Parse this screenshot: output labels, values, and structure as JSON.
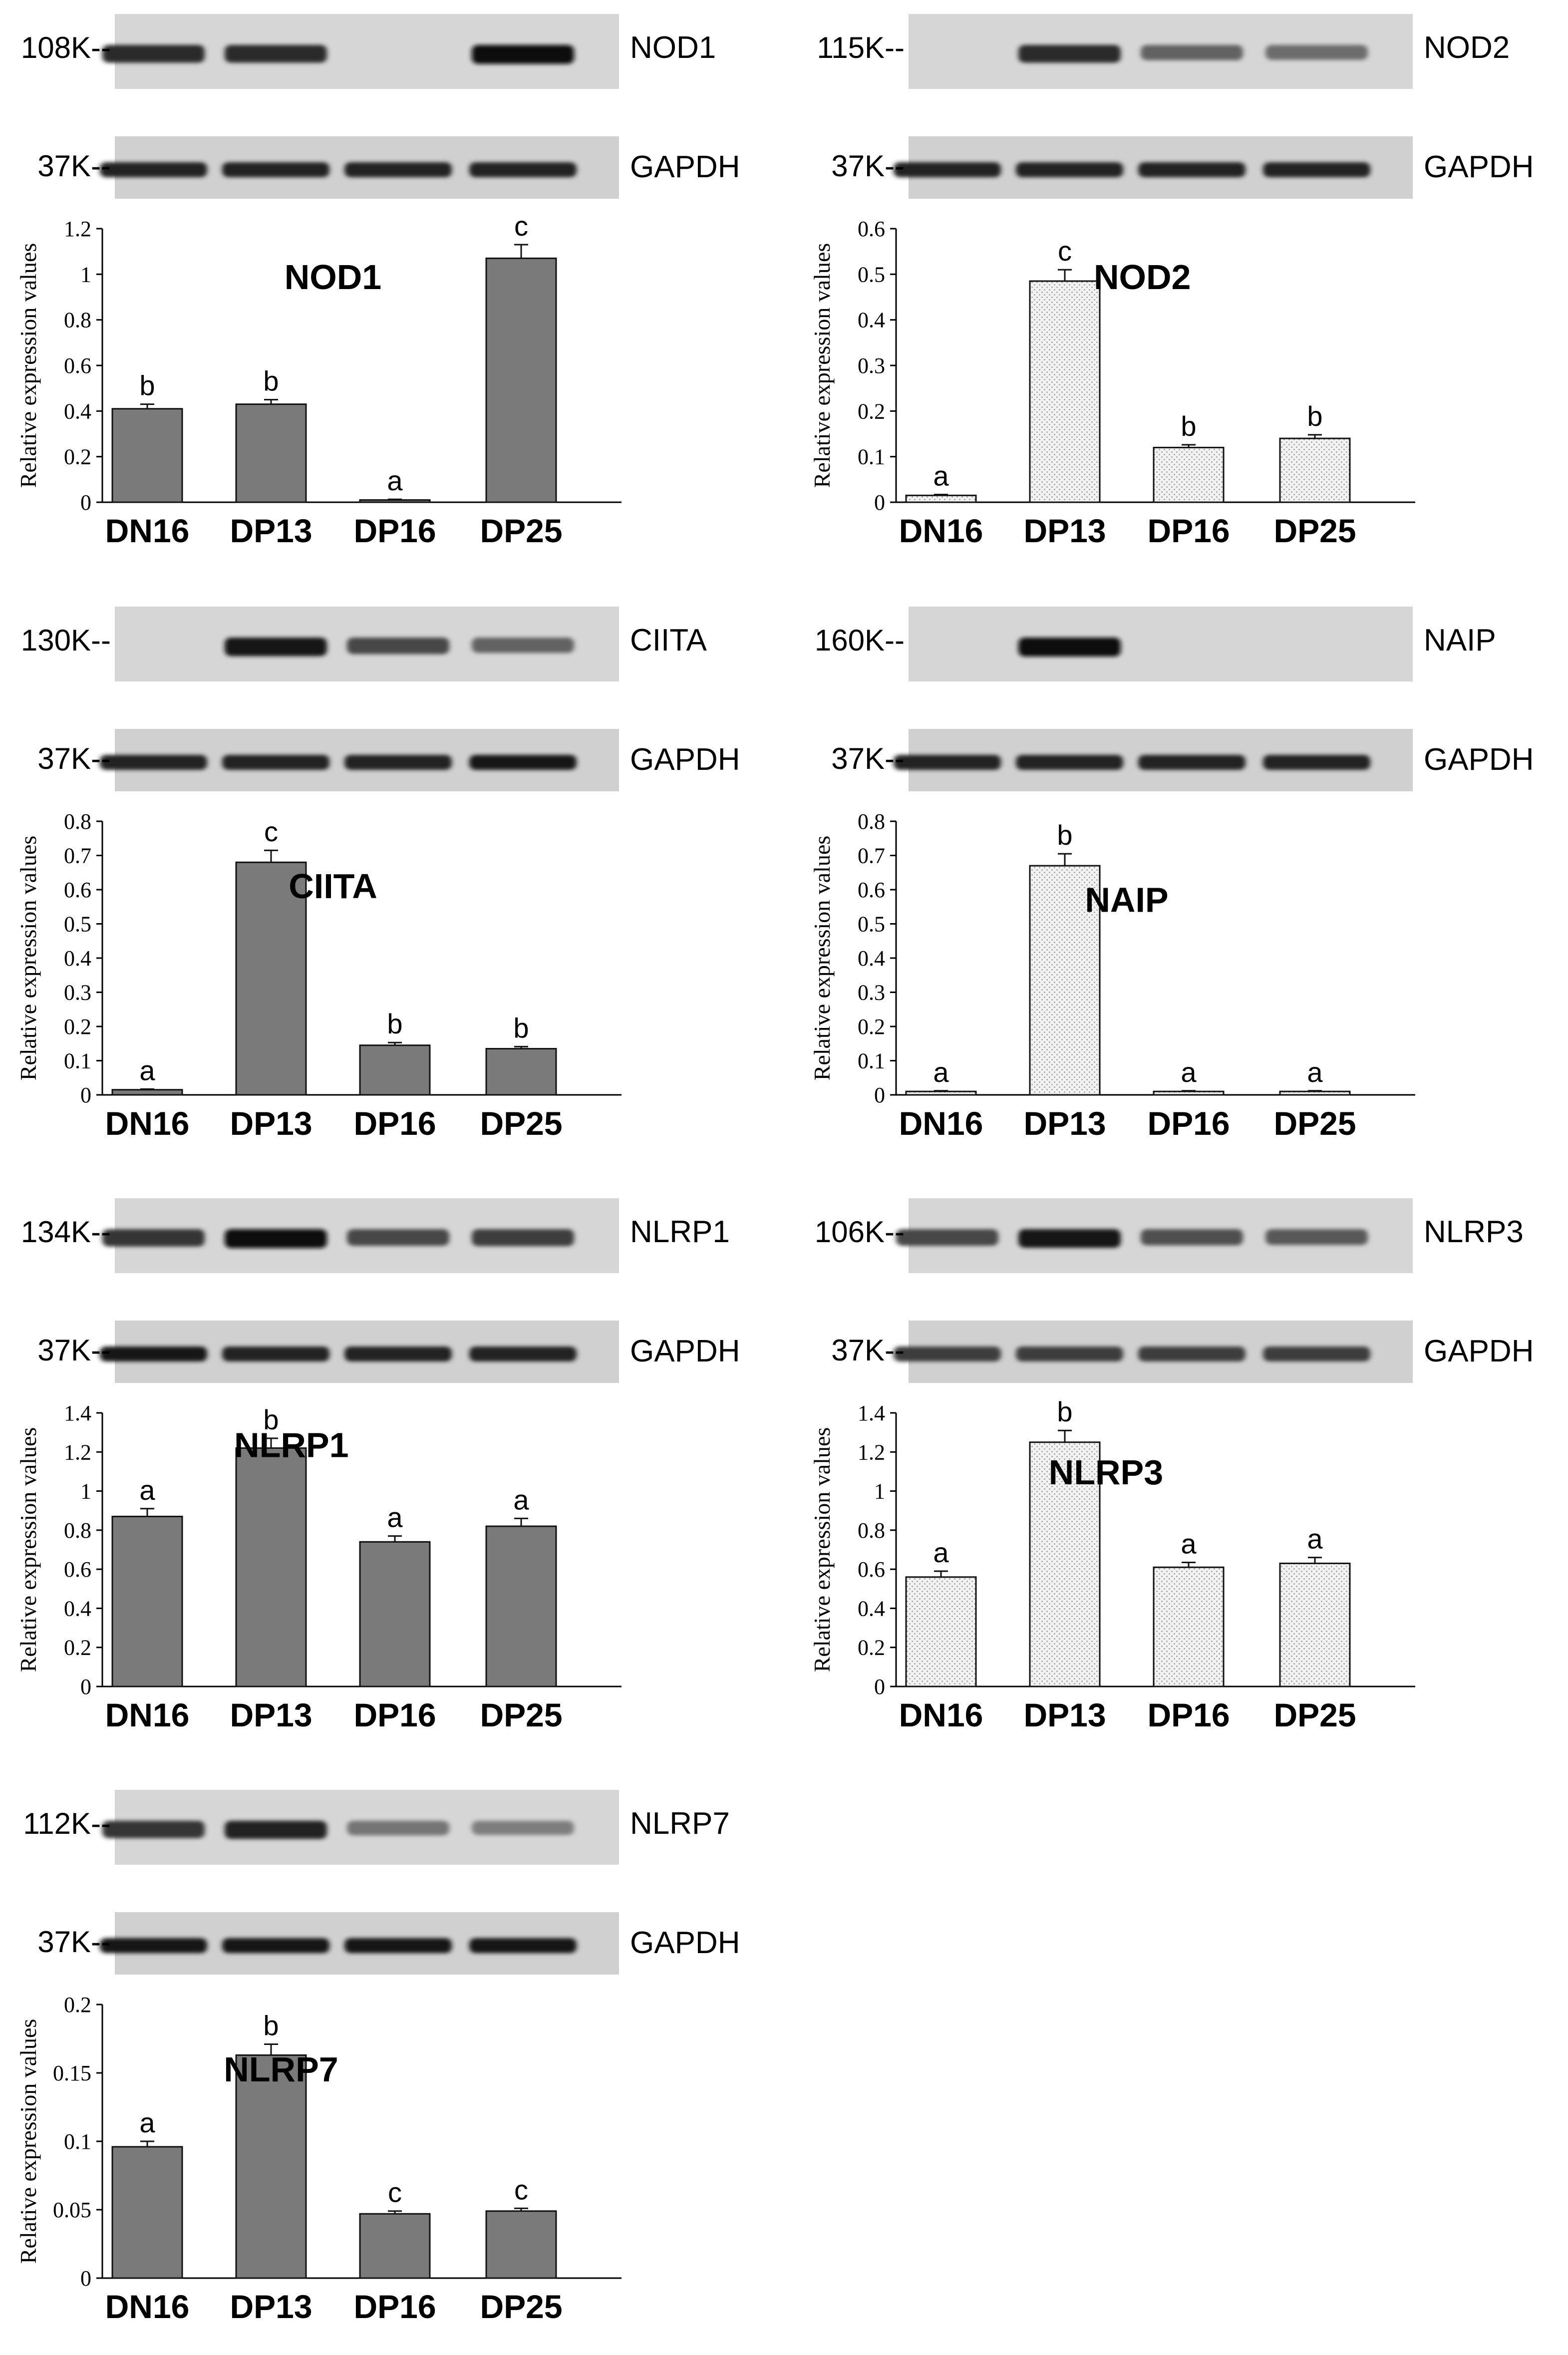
{
  "shared": {
    "categories": [
      "DN16",
      "DP13",
      "DP16",
      "DP25"
    ],
    "loading_control": "GAPDH",
    "loading_marker": "37K--",
    "ylabel": "Relative expression values"
  },
  "panels": [
    {
      "id": "nod1",
      "protein": "NOD1",
      "marker": "108K--",
      "fill": "solid",
      "band_intensity": [
        0.85,
        0.85,
        0.0,
        1.0
      ],
      "gapdh_intensity": [
        0.9,
        0.9,
        0.9,
        0.9
      ]
    },
    {
      "id": "nod2",
      "protein": "NOD2",
      "marker": "115K--",
      "fill": "dotted",
      "band_intensity": [
        0.0,
        0.85,
        0.55,
        0.5
      ],
      "gapdh_intensity": [
        0.9,
        0.9,
        0.9,
        0.9
      ]
    },
    {
      "id": "ciita",
      "protein": "CIITA",
      "marker": "130K--",
      "fill": "solid",
      "band_intensity": [
        0.0,
        0.95,
        0.7,
        0.55
      ],
      "gapdh_intensity": [
        0.9,
        0.9,
        0.9,
        0.95
      ]
    },
    {
      "id": "naip",
      "protein": "NAIP",
      "marker": "160K--",
      "fill": "dotted",
      "band_intensity": [
        0.0,
        1.0,
        0.0,
        0.0
      ],
      "gapdh_intensity": [
        0.9,
        0.9,
        0.9,
        0.9
      ]
    },
    {
      "id": "nlrp1",
      "protein": "NLRP1",
      "marker": "134K--",
      "fill": "solid",
      "band_intensity": [
        0.8,
        1.0,
        0.7,
        0.75
      ],
      "gapdh_intensity": [
        0.95,
        0.9,
        0.9,
        0.9
      ]
    },
    {
      "id": "nlrp3",
      "protein": "NLRP3",
      "marker": "106K--",
      "fill": "dotted",
      "band_intensity": [
        0.7,
        0.95,
        0.65,
        0.6
      ],
      "gapdh_intensity": [
        0.75,
        0.75,
        0.75,
        0.75
      ]
    },
    {
      "id": "nlrp7",
      "protein": "NLRP7",
      "marker": "112K--",
      "fill": "solid",
      "band_intensity": [
        0.8,
        0.9,
        0.45,
        0.4
      ],
      "gapdh_intensity": [
        0.95,
        0.95,
        0.95,
        0.95
      ]
    }
  ],
  "chart_data": [
    {
      "type": "bar",
      "title": "NOD1",
      "ylabel": "Relative expression values",
      "categories": [
        "DN16",
        "DP13",
        "DP16",
        "DP25"
      ],
      "values": [
        0.41,
        0.43,
        0.01,
        1.07
      ],
      "errors": [
        0.02,
        0.02,
        0.003,
        0.06
      ],
      "letters": [
        "b",
        "b",
        "a",
        "c"
      ],
      "ylim": [
        0,
        1.2
      ],
      "yticks": [
        "0",
        "0.2",
        "0.4",
        "0.6",
        "0.8",
        "1",
        "1.2"
      ]
    },
    {
      "type": "bar",
      "title": "NOD2",
      "ylabel": "Relative expression values",
      "categories": [
        "DN16",
        "DP13",
        "DP16",
        "DP25"
      ],
      "values": [
        0.015,
        0.485,
        0.12,
        0.14
      ],
      "errors": [
        0.002,
        0.025,
        0.006,
        0.008
      ],
      "letters": [
        "a",
        "c",
        "b",
        "b"
      ],
      "ylim": [
        0,
        0.6
      ],
      "yticks": [
        "0",
        "0.1",
        "0.2",
        "0.3",
        "0.4",
        "0.5",
        "0.6"
      ]
    },
    {
      "type": "bar",
      "title": "CIITA",
      "ylabel": "Relative expression values",
      "categories": [
        "DN16",
        "DP13",
        "DP16",
        "DP25"
      ],
      "values": [
        0.015,
        0.68,
        0.145,
        0.135
      ],
      "errors": [
        0.002,
        0.035,
        0.008,
        0.006
      ],
      "letters": [
        "a",
        "c",
        "b",
        "b"
      ],
      "ylim": [
        0,
        0.8
      ],
      "yticks": [
        "0",
        "0.1",
        "0.2",
        "0.3",
        "0.4",
        "0.5",
        "0.6",
        "0.7",
        "0.8"
      ]
    },
    {
      "type": "bar",
      "title": "NAIP",
      "ylabel": "Relative expression values",
      "categories": [
        "DN16",
        "DP13",
        "DP16",
        "DP25"
      ],
      "values": [
        0.01,
        0.67,
        0.01,
        0.01
      ],
      "errors": [
        0.002,
        0.035,
        0.002,
        0.002
      ],
      "letters": [
        "a",
        "b",
        "a",
        "a"
      ],
      "ylim": [
        0,
        0.8
      ],
      "yticks": [
        "0",
        "0.1",
        "0.2",
        "0.3",
        "0.4",
        "0.5",
        "0.6",
        "0.7",
        "0.8"
      ]
    },
    {
      "type": "bar",
      "title": "NLRP1",
      "ylabel": "Relative expression values",
      "categories": [
        "DN16",
        "DP13",
        "DP16",
        "DP25"
      ],
      "values": [
        0.87,
        1.22,
        0.74,
        0.82
      ],
      "errors": [
        0.04,
        0.05,
        0.03,
        0.04
      ],
      "letters": [
        "a",
        "b",
        "a",
        "a"
      ],
      "ylim": [
        0,
        1.4
      ],
      "yticks": [
        "0",
        "0.2",
        "0.4",
        "0.6",
        "0.8",
        "1",
        "1.2",
        "1.4"
      ]
    },
    {
      "type": "bar",
      "title": "NLRP3",
      "ylabel": "Relative expression values",
      "categories": [
        "DN16",
        "DP13",
        "DP16",
        "DP25"
      ],
      "values": [
        0.56,
        1.25,
        0.61,
        0.63
      ],
      "errors": [
        0.03,
        0.06,
        0.025,
        0.03
      ],
      "letters": [
        "a",
        "b",
        "a",
        "a"
      ],
      "ylim": [
        0,
        1.4
      ],
      "yticks": [
        "0",
        "0.2",
        "0.4",
        "0.6",
        "0.8",
        "1",
        "1.2",
        "1.4"
      ]
    },
    {
      "type": "bar",
      "title": "NLRP7",
      "ylabel": "Relative expression values",
      "categories": [
        "DN16",
        "DP13",
        "DP16",
        "DP25"
      ],
      "values": [
        0.096,
        0.163,
        0.047,
        0.049
      ],
      "errors": [
        0.004,
        0.008,
        0.002,
        0.002
      ],
      "letters": [
        "a",
        "b",
        "c",
        "c"
      ],
      "ylim": [
        0,
        0.2
      ],
      "yticks": [
        "0",
        "0.05",
        "0.1",
        "0.15",
        "0.2"
      ]
    }
  ]
}
